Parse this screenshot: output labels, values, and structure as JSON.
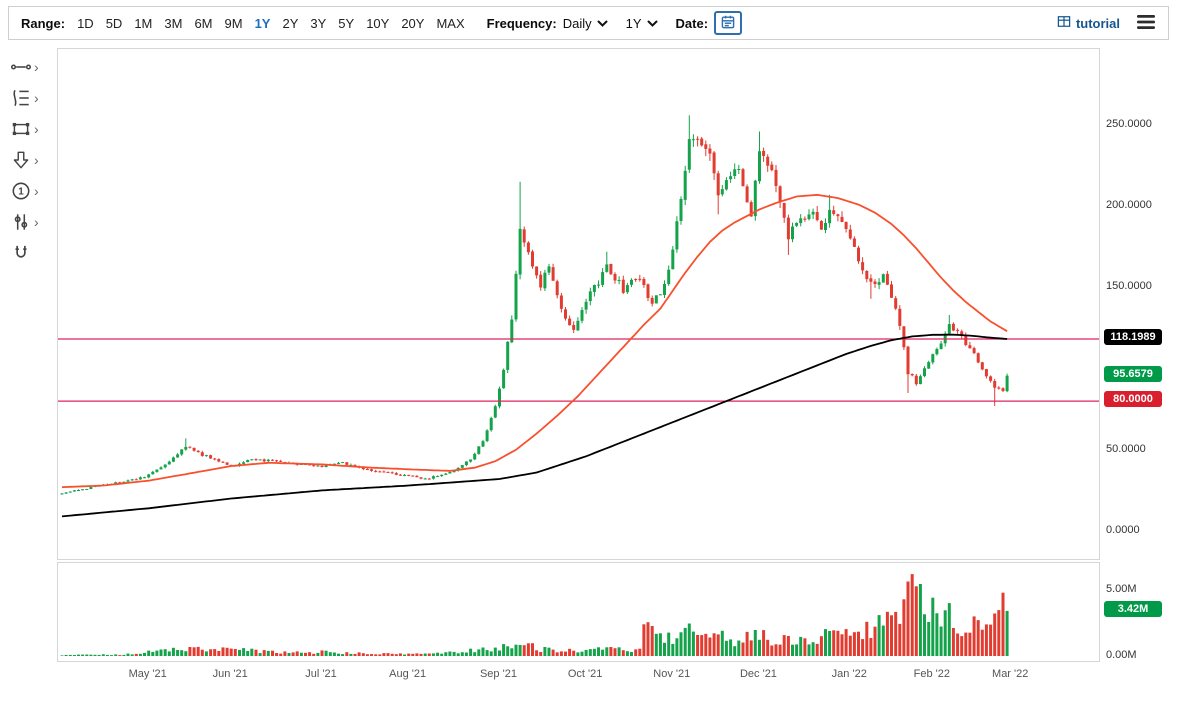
{
  "toolbar": {
    "range_label": "Range:",
    "range_options": [
      "1D",
      "5D",
      "1M",
      "3M",
      "6M",
      "9M",
      "1Y",
      "2Y",
      "3Y",
      "5Y",
      "10Y",
      "20Y",
      "MAX"
    ],
    "range_selected": "1Y",
    "frequency_label": "Frequency:",
    "frequency_value": "Daily",
    "period_value": "1Y",
    "date_label": "Date:",
    "tutorial_label": "tutorial",
    "accent_blue": "#1b6fc2"
  },
  "tools_sidebar": {
    "submenu_glyph": "›",
    "items": [
      {
        "name": "measure-tool",
        "icon": "measure",
        "has_submenu": true
      },
      {
        "name": "fibonacci-tool",
        "icon": "fibonacci",
        "has_submenu": true
      },
      {
        "name": "shapes-tool",
        "icon": "shapes",
        "has_submenu": true
      },
      {
        "name": "arrow-tool",
        "icon": "arrow-down",
        "has_submenu": true
      },
      {
        "name": "number-annotation-tool",
        "icon": "number-one",
        "has_submenu": true
      },
      {
        "name": "studies-tool",
        "icon": "studies",
        "has_submenu": true
      },
      {
        "name": "magnet-tool",
        "icon": "magnet",
        "has_submenu": false
      }
    ]
  },
  "chart_data": {
    "type": "candlestick",
    "frequency": "Daily",
    "range": "1Y",
    "colors": {
      "up": "#14a34a",
      "down": "#e23b30",
      "hline": "#e0245e"
    },
    "x_axis": {
      "labels": [
        "May '21",
        "Jun '21",
        "Jul '21",
        "Aug '21",
        "Sep '21",
        "Oct '21",
        "Nov '21",
        "Dec '21",
        "Jan '22",
        "Feb '22",
        "Mar '22"
      ],
      "label_days": [
        21,
        41,
        63,
        84,
        106,
        127,
        148,
        169,
        191,
        211,
        230
      ]
    },
    "price_axis": {
      "ticks": [
        {
          "value": 250,
          "label": "250.0000"
        },
        {
          "value": 200,
          "label": "200.0000"
        },
        {
          "value": 150,
          "label": "150.0000"
        },
        {
          "value": 50,
          "label": "50.0000"
        },
        {
          "value": 0,
          "label": "0.0000"
        }
      ]
    },
    "horizontal_lines": [
      {
        "value": 118.1989,
        "color": "#e0245e"
      },
      {
        "value": 80.0,
        "color": "#e0245e"
      }
    ],
    "price_badges": [
      {
        "label": "118.1989",
        "value": 118.1989,
        "bg": "#000000"
      },
      {
        "label": "95.6579",
        "value": 95.6579,
        "bg": "#009a49"
      },
      {
        "label": "80.0000",
        "value": 80.0,
        "bg": "#d91e2e"
      }
    ],
    "last_close": 95.6579,
    "close_keypoints": [
      [
        0,
        23
      ],
      [
        9,
        28
      ],
      [
        20,
        33
      ],
      [
        25,
        41
      ],
      [
        30,
        52
      ],
      [
        34,
        47
      ],
      [
        41,
        40
      ],
      [
        46,
        44
      ],
      [
        51,
        43
      ],
      [
        58,
        41
      ],
      [
        63,
        40
      ],
      [
        68,
        42
      ],
      [
        75,
        37
      ],
      [
        84,
        34
      ],
      [
        88,
        32
      ],
      [
        94,
        36
      ],
      [
        99,
        44
      ],
      [
        102,
        55
      ],
      [
        105,
        78
      ],
      [
        107,
        100
      ],
      [
        109,
        132
      ],
      [
        111,
        185
      ],
      [
        113,
        172
      ],
      [
        116,
        152
      ],
      [
        118,
        163
      ],
      [
        121,
        135
      ],
      [
        124,
        123
      ],
      [
        126,
        136
      ],
      [
        129,
        150
      ],
      [
        132,
        162
      ],
      [
        136,
        149
      ],
      [
        140,
        157
      ],
      [
        143,
        139
      ],
      [
        146,
        152
      ],
      [
        148,
        175
      ],
      [
        150,
        205
      ],
      [
        152,
        243
      ],
      [
        154,
        238
      ],
      [
        157,
        236
      ],
      [
        159,
        208
      ],
      [
        161,
        216
      ],
      [
        164,
        222
      ],
      [
        166,
        201
      ],
      [
        167,
        196
      ],
      [
        169,
        236
      ],
      [
        171,
        228
      ],
      [
        174,
        203
      ],
      [
        176,
        182
      ],
      [
        179,
        190
      ],
      [
        182,
        196
      ],
      [
        184,
        186
      ],
      [
        186,
        198
      ],
      [
        189,
        191
      ],
      [
        191,
        178
      ],
      [
        194,
        161
      ],
      [
        196,
        152
      ],
      [
        199,
        156
      ],
      [
        201,
        143
      ],
      [
        203,
        128
      ],
      [
        205,
        98
      ],
      [
        207,
        91
      ],
      [
        210,
        103
      ],
      [
        213,
        116
      ],
      [
        215,
        126
      ],
      [
        218,
        119
      ],
      [
        221,
        108
      ],
      [
        223,
        101
      ],
      [
        226,
        88
      ],
      [
        228,
        86
      ],
      [
        229,
        95.6579
      ]
    ],
    "wick_events": [
      {
        "day": 30,
        "high": 57
      },
      {
        "day": 111,
        "high": 215
      },
      {
        "day": 132,
        "high": 172
      },
      {
        "day": 152,
        "high": 256
      },
      {
        "day": 159,
        "low": 195
      },
      {
        "day": 169,
        "high": 246
      },
      {
        "day": 176,
        "low": 170
      },
      {
        "day": 186,
        "high": 207
      },
      {
        "day": 196,
        "low": 143
      },
      {
        "day": 205,
        "low": 85
      },
      {
        "day": 215,
        "high": 133
      },
      {
        "day": 226,
        "low": 77
      }
    ],
    "moving_averages": [
      {
        "name": "ma-fast",
        "color": "#f8502e",
        "points": [
          [
            0,
            27
          ],
          [
            10,
            28
          ],
          [
            21,
            31
          ],
          [
            30,
            35
          ],
          [
            41,
            40
          ],
          [
            50,
            42
          ],
          [
            63,
            41
          ],
          [
            75,
            39
          ],
          [
            84,
            38
          ],
          [
            94,
            37
          ],
          [
            100,
            39
          ],
          [
            105,
            43
          ],
          [
            110,
            50
          ],
          [
            115,
            60
          ],
          [
            120,
            71
          ],
          [
            125,
            83
          ],
          [
            129,
            94
          ],
          [
            133,
            105
          ],
          [
            137,
            116
          ],
          [
            141,
            127
          ],
          [
            145,
            137
          ],
          [
            148,
            148
          ],
          [
            151,
            159
          ],
          [
            154,
            169
          ],
          [
            157,
            178
          ],
          [
            160,
            185
          ],
          [
            163,
            190
          ],
          [
            166,
            194
          ],
          [
            169,
            198
          ],
          [
            173,
            202
          ],
          [
            178,
            206
          ],
          [
            183,
            207
          ],
          [
            188,
            205
          ],
          [
            193,
            201
          ],
          [
            197,
            196
          ],
          [
            201,
            189
          ],
          [
            204,
            182
          ],
          [
            207,
            174
          ],
          [
            210,
            165
          ],
          [
            213,
            156
          ],
          [
            216,
            148
          ],
          [
            219,
            141
          ],
          [
            222,
            135
          ],
          [
            225,
            129
          ],
          [
            229,
            123
          ]
        ]
      },
      {
        "name": "ma-slow",
        "color": "#000000",
        "points": [
          [
            0,
            9
          ],
          [
            21,
            14
          ],
          [
            41,
            20
          ],
          [
            63,
            25
          ],
          [
            84,
            28
          ],
          [
            106,
            32
          ],
          [
            115,
            36
          ],
          [
            121,
            41
          ],
          [
            127,
            46
          ],
          [
            134,
            53
          ],
          [
            141,
            60
          ],
          [
            148,
            67
          ],
          [
            155,
            74
          ],
          [
            162,
            81
          ],
          [
            169,
            88
          ],
          [
            176,
            95
          ],
          [
            183,
            102
          ],
          [
            190,
            109
          ],
          [
            196,
            114
          ],
          [
            201,
            117.5
          ],
          [
            206,
            119.8
          ],
          [
            211,
            120.8
          ],
          [
            216,
            120.9
          ],
          [
            220,
            120.3
          ],
          [
            224,
            119.3
          ],
          [
            229,
            118.2
          ]
        ]
      }
    ],
    "volume": {
      "ticks": [
        {
          "value": 5,
          "label": "5.00M"
        },
        {
          "value": 0,
          "label": "0.00M"
        }
      ],
      "badge": {
        "label": "3.42M",
        "value": 3.42,
        "bg": "#009a49"
      },
      "last_value": 3.42,
      "keypoints": [
        [
          0,
          0.06
        ],
        [
          15,
          0.12
        ],
        [
          25,
          0.4
        ],
        [
          30,
          0.6
        ],
        [
          35,
          0.45
        ],
        [
          41,
          0.5
        ],
        [
          48,
          0.35
        ],
        [
          55,
          0.25
        ],
        [
          63,
          0.3
        ],
        [
          70,
          0.2
        ],
        [
          80,
          0.15
        ],
        [
          90,
          0.2
        ],
        [
          96,
          0.3
        ],
        [
          100,
          0.45
        ],
        [
          104,
          0.6
        ],
        [
          108,
          0.75
        ],
        [
          112,
          0.8
        ],
        [
          116,
          0.55
        ],
        [
          120,
          0.45
        ],
        [
          126,
          0.4
        ],
        [
          132,
          0.5
        ],
        [
          138,
          0.5
        ],
        [
          140,
          0.5
        ],
        [
          141,
          3.0
        ],
        [
          142,
          1.8
        ],
        [
          145,
          1.2
        ],
        [
          148,
          1.5
        ],
        [
          151,
          1.9
        ],
        [
          154,
          1.3
        ],
        [
          157,
          1.1
        ],
        [
          159,
          1.5
        ],
        [
          162,
          1.2
        ],
        [
          165,
          1.4
        ],
        [
          168,
          1.7
        ],
        [
          171,
          1.5
        ],
        [
          174,
          1.2
        ],
        [
          177,
          1.0
        ],
        [
          180,
          1.1
        ],
        [
          183,
          1.3
        ],
        [
          186,
          1.6
        ],
        [
          189,
          1.4
        ],
        [
          192,
          2.3
        ],
        [
          194,
          1.7
        ],
        [
          197,
          2.1
        ],
        [
          199,
          2.7
        ],
        [
          201,
          2.2
        ],
        [
          203,
          3.4
        ],
        [
          204,
          5.9
        ],
        [
          205,
          5.6
        ],
        [
          206,
          4.6
        ],
        [
          207,
          5.8
        ],
        [
          208,
          4.2
        ],
        [
          209,
          5.2
        ],
        [
          210,
          4.4
        ],
        [
          212,
          3.6
        ],
        [
          214,
          3.1
        ],
        [
          216,
          2.9
        ],
        [
          218,
          2.6
        ],
        [
          220,
          2.3
        ],
        [
          222,
          2.0
        ],
        [
          224,
          2.4
        ],
        [
          226,
          3.2
        ],
        [
          227,
          4.6
        ],
        [
          228,
          6.1
        ],
        [
          229,
          3.42
        ]
      ]
    }
  }
}
